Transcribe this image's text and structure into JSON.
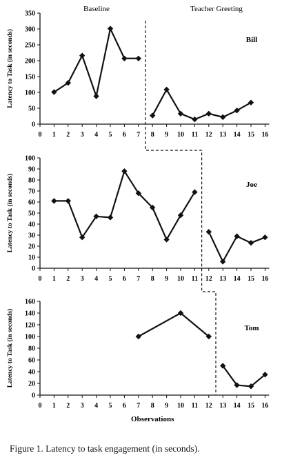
{
  "chart_data": [
    {
      "type": "line",
      "participant": "Bill",
      "phase_labels": [
        "Baseline",
        "Teacher Greeting"
      ],
      "ylabel": "Latency to Task (in seconds)",
      "ylim": [
        0,
        350
      ],
      "yticks": [
        0,
        50,
        100,
        150,
        200,
        250,
        300,
        350
      ],
      "xticks": [
        0,
        1,
        2,
        3,
        4,
        5,
        6,
        7,
        8,
        9,
        10,
        11,
        12,
        13,
        14,
        15,
        16
      ],
      "phase_change_after": 7.5,
      "series": [
        {
          "phase": "Baseline",
          "x": [
            1,
            2,
            3,
            4,
            5,
            6,
            7
          ],
          "y": [
            101,
            130,
            216,
            88,
            301,
            207,
            207
          ]
        },
        {
          "phase": "Teacher Greeting",
          "x": [
            8,
            9,
            10,
            11,
            12,
            13,
            14,
            15
          ],
          "y": [
            27,
            109,
            33,
            15,
            33,
            22,
            43,
            68
          ]
        }
      ]
    },
    {
      "type": "line",
      "participant": "Joe",
      "ylabel": "Latency to Task (in seconds)",
      "ylim": [
        0,
        100
      ],
      "yticks": [
        0,
        10,
        20,
        30,
        40,
        50,
        60,
        70,
        80,
        90,
        100
      ],
      "xticks": [
        0,
        1,
        2,
        3,
        4,
        5,
        6,
        7,
        8,
        9,
        10,
        11,
        12,
        13,
        14,
        15,
        16
      ],
      "phase_change_after": 11.5,
      "series": [
        {
          "phase": "Baseline",
          "x": [
            1,
            2,
            3,
            4,
            5,
            6,
            7,
            8,
            9,
            10,
            11
          ],
          "y": [
            61,
            61,
            28,
            47,
            46,
            88,
            68,
            55,
            26,
            48,
            69
          ]
        },
        {
          "phase": "Teacher Greeting",
          "x": [
            12,
            13,
            14,
            15,
            16
          ],
          "y": [
            33,
            6,
            29,
            23,
            28
          ]
        }
      ]
    },
    {
      "type": "line",
      "participant": "Tom",
      "ylabel": "Latency to Task (in seconds)",
      "xlabel": "Observations",
      "ylim": [
        0,
        160
      ],
      "yticks": [
        0,
        20,
        40,
        60,
        80,
        100,
        120,
        140,
        160
      ],
      "xticks": [
        0,
        1,
        2,
        3,
        4,
        5,
        6,
        7,
        8,
        9,
        10,
        11,
        12,
        13,
        14,
        15,
        16
      ],
      "phase_change_after": 12.5,
      "series": [
        {
          "phase": "Baseline",
          "x": [
            7,
            10,
            12
          ],
          "y": [
            100,
            140,
            100
          ]
        },
        {
          "phase": "Teacher Greeting",
          "x": [
            13,
            14,
            15,
            16
          ],
          "y": [
            50,
            17,
            15,
            35
          ]
        }
      ]
    }
  ],
  "caption": "Figure 1.   Latency to task engagement (in seconds)."
}
